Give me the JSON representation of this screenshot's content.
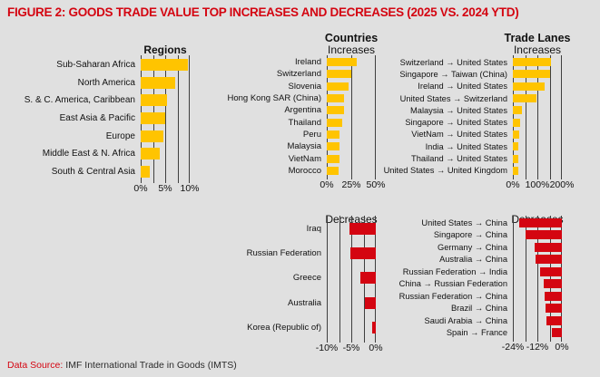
{
  "figure_title": "FIGURE 2: GOODS TRADE VALUE TOP INCREASES AND DECREASES (2025 VS. 2024 YTD)",
  "footer": {
    "label": "Data Source:",
    "text": "IMF International Trade in Goods (IMTS)"
  },
  "colors": {
    "background": "#e0e0e0",
    "increase_bar": "#FFC400",
    "decrease_bar": "#D40511",
    "title_red": "#D40511",
    "gridline": "#3f3f3f",
    "text": "#111111"
  },
  "chart_data": [
    {
      "name": "regions",
      "type": "bar",
      "orientation": "horizontal",
      "header": {
        "title": "",
        "subtitle": "Regions",
        "subtitle_bold": true
      },
      "categories": [
        "Sub-Saharan Africa",
        "North America",
        "S. & C. America, Caribbean",
        "East Asia & Pacific",
        "Europe",
        "Middle East & N. Africa",
        "South & Central Asia"
      ],
      "values": [
        9.7,
        7.1,
        5.4,
        5.0,
        4.7,
        3.9,
        1.8
      ],
      "bar_color": "#FFC400",
      "axis": {
        "min": 0,
        "max": 10,
        "unit": "%",
        "gridlines": [
          0,
          2.5,
          5,
          7.5,
          10
        ],
        "ticks": [
          {
            "value": 0,
            "label": "0%"
          },
          {
            "value": 5,
            "label": "5%"
          },
          {
            "value": 10,
            "label": "10%"
          }
        ]
      }
    },
    {
      "name": "countries-increases",
      "type": "bar",
      "orientation": "horizontal",
      "header": {
        "title": "Countries",
        "subtitle": "Increases",
        "subtitle_bold": false
      },
      "categories": [
        "Ireland",
        "Switzerland",
        "Slovenia",
        "Hong Kong SAR (China)",
        "Argentina",
        "Thailand",
        "Peru",
        "Malaysia",
        "VietNam",
        "Morocco"
      ],
      "values": [
        31,
        25,
        22,
        18,
        18,
        16,
        13,
        13,
        13,
        12
      ],
      "bar_color": "#FFC400",
      "axis": {
        "min": 0,
        "max": 50,
        "unit": "%",
        "gridlines": [
          0,
          25,
          50
        ],
        "ticks": [
          {
            "value": 0,
            "label": "0%"
          },
          {
            "value": 25,
            "label": "25%"
          },
          {
            "value": 50,
            "label": "50%"
          }
        ]
      }
    },
    {
      "name": "trade-lanes-increases",
      "type": "bar",
      "orientation": "horizontal",
      "header": {
        "title": "Trade Lanes",
        "subtitle": "Increases",
        "subtitle_bold": false
      },
      "categories": [
        "Switzerland → United States",
        "Singapore → Taiwan (China)",
        "Ireland → United States",
        "United States → Switzerland",
        "Malaysia → United States",
        "Singapore → United States",
        "VietNam → United States",
        "India → United States",
        "Thailand → United States",
        "United States → United Kingdom"
      ],
      "values": [
        155,
        150,
        128,
        96,
        36,
        31,
        26,
        22,
        22,
        22
      ],
      "bar_color": "#FFC400",
      "axis": {
        "min": 0,
        "max": 200,
        "unit": "%",
        "gridlines": [
          0,
          50,
          100,
          150,
          200
        ],
        "ticks": [
          {
            "value": 0,
            "label": "0%"
          },
          {
            "value": 100,
            "label": "100%"
          },
          {
            "value": 200,
            "label": "200%"
          }
        ]
      }
    },
    {
      "name": "countries-decreases",
      "type": "bar",
      "orientation": "horizontal",
      "header": {
        "title": "",
        "subtitle": "Decreases",
        "subtitle_bold": false
      },
      "categories": [
        "Iraq",
        "Russian Federation",
        "Greece",
        "Australia",
        "Korea (Republic of)"
      ],
      "values": [
        -5.3,
        -5.1,
        -3.1,
        -2.3,
        -0.8
      ],
      "bar_color": "#D40511",
      "axis": {
        "min": -10,
        "max": 0,
        "unit": "%",
        "gridlines": [
          -10,
          -7.5,
          -5,
          -2.5,
          0
        ],
        "ticks": [
          {
            "value": -10,
            "label": "-10%"
          },
          {
            "value": -5,
            "label": "-5%"
          },
          {
            "value": 0,
            "label": "0%"
          }
        ]
      }
    },
    {
      "name": "trade-lanes-decreases",
      "type": "bar",
      "orientation": "horizontal",
      "header": {
        "title": "",
        "subtitle": "Decreases",
        "subtitle_bold": false
      },
      "categories": [
        "United States → China",
        "Singapore → China",
        "Germany → China",
        "Australia → China",
        "Russian Federation → India",
        "China → Russian Federation",
        "Russian Federation → China",
        "Brazil → China",
        "Saudi Arabia → China",
        "Spain → France"
      ],
      "values": [
        -21,
        -18,
        -13.5,
        -13,
        -10.5,
        -9,
        -8.5,
        -8,
        -7.5,
        -5
      ],
      "bar_color": "#D40511",
      "axis": {
        "min": -24,
        "max": 0,
        "unit": "%",
        "gridlines": [
          -24,
          -18,
          -12,
          -6,
          0
        ],
        "ticks": [
          {
            "value": -24,
            "label": "-24%"
          },
          {
            "value": -12,
            "label": "-12%"
          },
          {
            "value": 0,
            "label": "0%"
          }
        ]
      }
    }
  ]
}
